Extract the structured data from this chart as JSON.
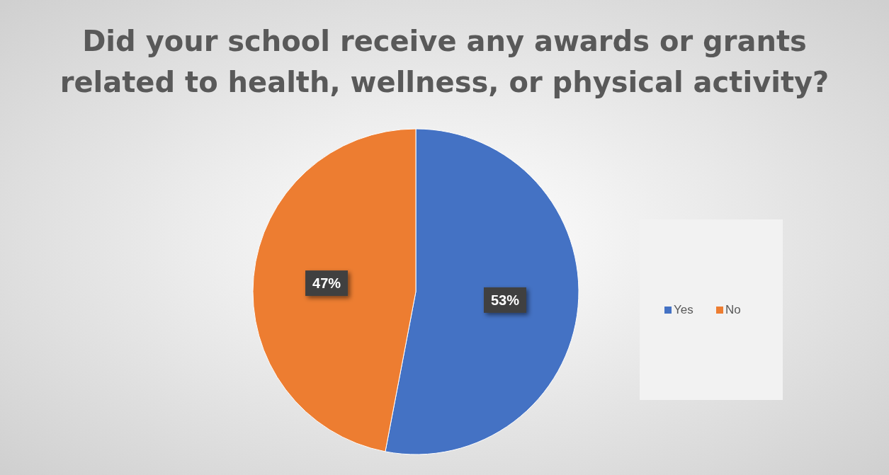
{
  "chart_data": {
    "type": "pie",
    "title": "Did your school receive any awards or grants related to health, wellness, or physical activity?",
    "categories": [
      "Yes",
      "No"
    ],
    "values": [
      53,
      47
    ],
    "colors": [
      "#4472c4",
      "#ed7d31"
    ],
    "value_labels": [
      "53%",
      "47%"
    ],
    "legend": "right"
  }
}
